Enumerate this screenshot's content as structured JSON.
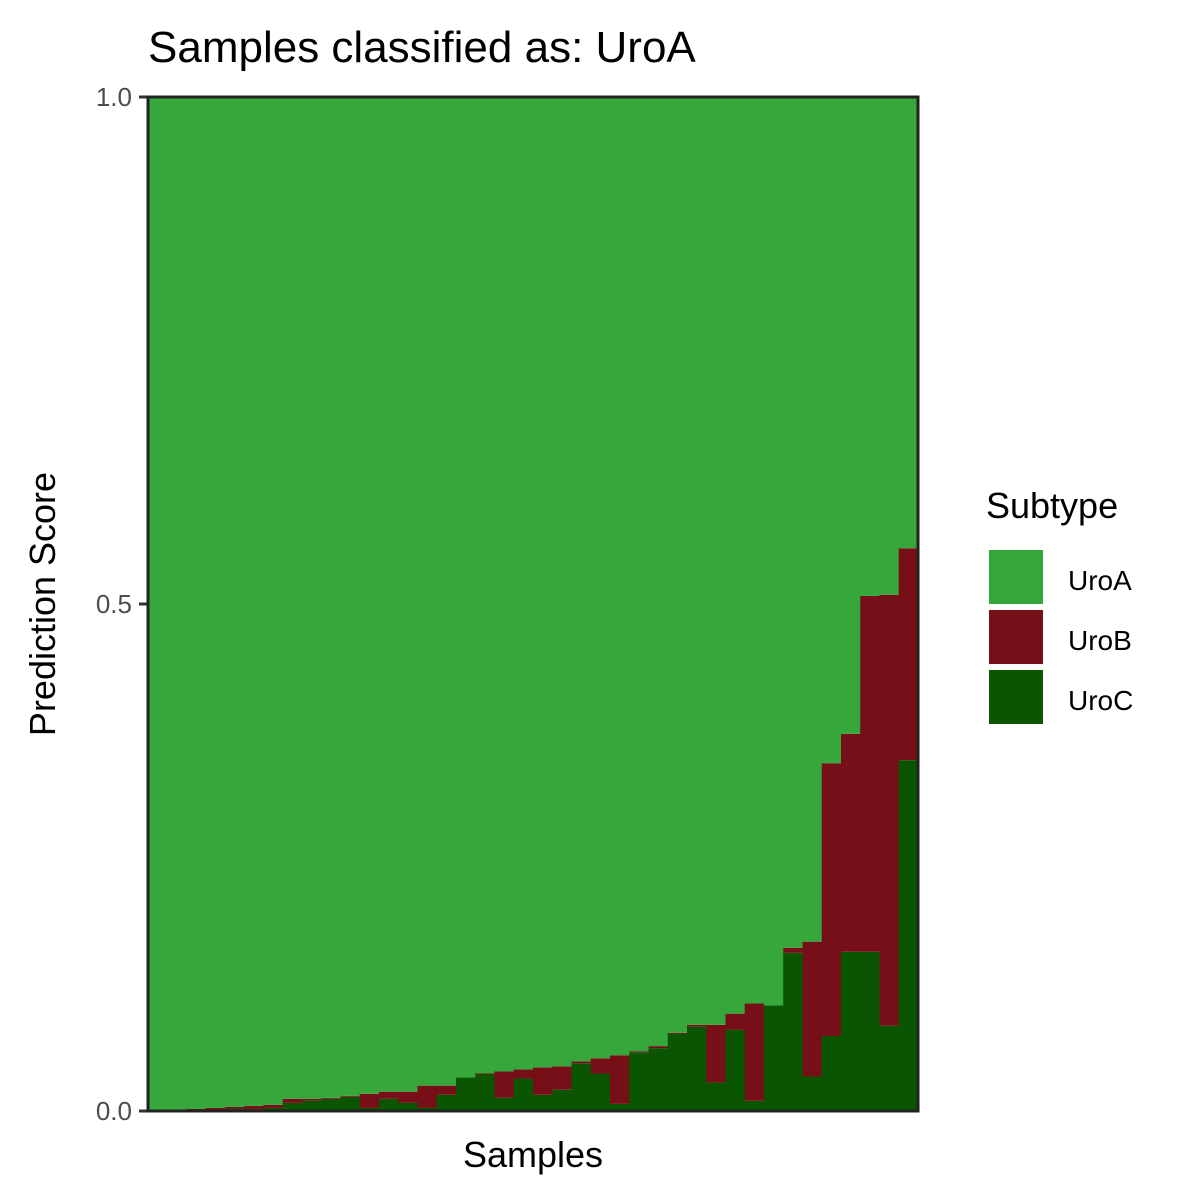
{
  "chart_data": {
    "type": "bar",
    "stacked": true,
    "title": "Samples classified as: UroA",
    "xlabel": "Samples",
    "ylabel": "Prediction Score",
    "ylim": [
      0,
      1
    ],
    "yticks": [
      "0.0",
      "0.5",
      "1.0"
    ],
    "grid": false,
    "legend": {
      "title": "Subtype",
      "position": "right",
      "entries": [
        "UroA",
        "UroB",
        "UroC"
      ]
    },
    "colors": {
      "UroA": "#35a73b",
      "UroB": "#760f17",
      "UroC": "#0a5501"
    },
    "stack_order": [
      "UroC",
      "UroB",
      "UroA"
    ],
    "samples": [
      {
        "UroC": 0.0,
        "UroB": 0.0
      },
      {
        "UroC": 0.0,
        "UroB": 0.0
      },
      {
        "UroC": 0.001,
        "UroB": 0.001
      },
      {
        "UroC": 0.001,
        "UroB": 0.002
      },
      {
        "UroC": 0.002,
        "UroB": 0.002
      },
      {
        "UroC": 0.002,
        "UroB": 0.003
      },
      {
        "UroC": 0.003,
        "UroB": 0.003
      },
      {
        "UroC": 0.008,
        "UroB": 0.004
      },
      {
        "UroC": 0.01,
        "UroB": 0.002
      },
      {
        "UroC": 0.012,
        "UroB": 0.001
      },
      {
        "UroC": 0.014,
        "UroB": 0.001
      },
      {
        "UroC": 0.003,
        "UroB": 0.014
      },
      {
        "UroC": 0.012,
        "UroB": 0.007
      },
      {
        "UroC": 0.008,
        "UroB": 0.011
      },
      {
        "UroC": 0.003,
        "UroB": 0.022
      },
      {
        "UroC": 0.016,
        "UroB": 0.009
      },
      {
        "UroC": 0.033,
        "UroB": 0.0
      },
      {
        "UroC": 0.036,
        "UroB": 0.001
      },
      {
        "UroC": 0.013,
        "UroB": 0.026
      },
      {
        "UroC": 0.032,
        "UroB": 0.009
      },
      {
        "UroC": 0.016,
        "UroB": 0.027
      },
      {
        "UroC": 0.021,
        "UroB": 0.023
      },
      {
        "UroC": 0.047,
        "UroB": 0.002
      },
      {
        "UroC": 0.037,
        "UroB": 0.015
      },
      {
        "UroC": 0.007,
        "UroB": 0.048
      },
      {
        "UroC": 0.058,
        "UroB": 0.001
      },
      {
        "UroC": 0.062,
        "UroB": 0.002
      },
      {
        "UroC": 0.076,
        "UroB": 0.001
      },
      {
        "UroC": 0.083,
        "UroB": 0.002
      },
      {
        "UroC": 0.028,
        "UroB": 0.057
      },
      {
        "UroC": 0.08,
        "UroB": 0.016
      },
      {
        "UroC": 0.01,
        "UroB": 0.096
      },
      {
        "UroC": 0.104,
        "UroB": 0.0
      },
      {
        "UroC": 0.156,
        "UroB": 0.005
      },
      {
        "UroC": 0.034,
        "UroB": 0.133
      },
      {
        "UroC": 0.074,
        "UroB": 0.269
      },
      {
        "UroC": 0.157,
        "UroB": 0.215
      },
      {
        "UroC": 0.157,
        "UroB": 0.351
      },
      {
        "UroC": 0.084,
        "UroB": 0.425
      },
      {
        "UroC": 0.346,
        "UroB": 0.209
      }
    ]
  }
}
